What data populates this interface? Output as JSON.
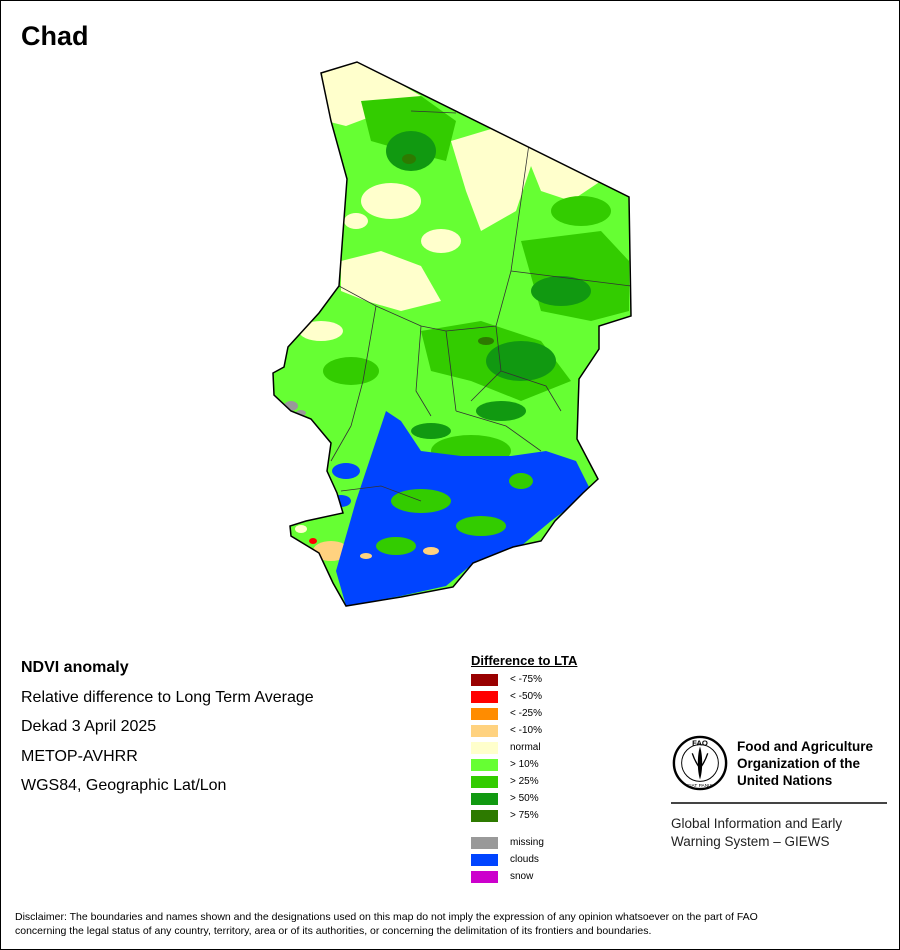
{
  "title": "Chad",
  "info": {
    "product": "NDVI anomaly",
    "description": "Relative difference to Long Term Average",
    "period": "Dekad 3 April 2025",
    "sensor": "METOP-AVHRR",
    "projection": "WGS84, Geographic Lat/Lon"
  },
  "legend": {
    "title": "Difference to LTA",
    "classes": [
      {
        "label": "< -75%",
        "color": "#990000"
      },
      {
        "label": "< -50%",
        "color": "#ff0000"
      },
      {
        "label": "< -25%",
        "color": "#ff8c00"
      },
      {
        "label": "< -10%",
        "color": "#ffd27f"
      },
      {
        "label": "normal",
        "color": "#ffffcc"
      },
      {
        "label": "> 10%",
        "color": "#66ff33"
      },
      {
        "label": "> 25%",
        "color": "#33cc00"
      },
      {
        "label": "> 50%",
        "color": "#119911"
      },
      {
        "label": "> 75%",
        "color": "#2d7a00"
      }
    ],
    "extras": [
      {
        "label": "missing",
        "color": "#999999"
      },
      {
        "label": "clouds",
        "color": "#0044ff"
      },
      {
        "label": "snow",
        "color": "#cc00cc"
      }
    ]
  },
  "fao": {
    "logo_letters": "FAO",
    "logo_motto": "FIAT PANIS",
    "name_line1": "Food and Agriculture",
    "name_line2": "Organization of the",
    "name_line3": "United Nations",
    "giews_line1": "Global Information and Early",
    "giews_line2": "Warning System – GIEWS"
  },
  "disclaimer_line1": "Disclaimer: The boundaries and names shown and the designations used on this map do not imply the expression of any opinion whatsoever on the part of FAO",
  "disclaimer_line2": "concerning the legal status of any country, territory, area or of its authorities, or concerning the delimitation of its frontiers and boundaries."
}
